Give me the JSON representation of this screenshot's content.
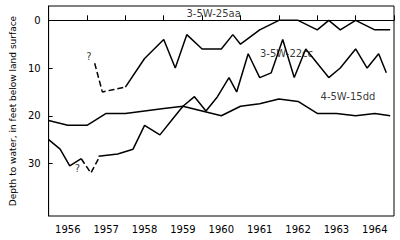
{
  "chart_data": {
    "type": "line",
    "y_label": "Depth to water, in feet below land surface",
    "xlim": [
      1956,
      1965
    ],
    "xticks": [
      {
        "value": 1956.5,
        "label": "1956"
      },
      {
        "value": 1957.5,
        "label": "1957"
      },
      {
        "value": 1958.5,
        "label": "1958"
      },
      {
        "value": 1959.5,
        "label": "1959"
      },
      {
        "value": 1960.5,
        "label": "1960"
      },
      {
        "value": 1961.5,
        "label": "1961"
      },
      {
        "value": 1962.5,
        "label": "1962"
      },
      {
        "value": 1963.5,
        "label": "1963"
      },
      {
        "value": 1964.5,
        "label": "1964"
      }
    ],
    "ylim": [
      -3,
      41
    ],
    "yticks": [
      0,
      10,
      20,
      30
    ],
    "inverted_y": true,
    "grid": false,
    "color": "#000000",
    "series": [
      {
        "name": "3-5W-25aa",
        "line_style": "dashed",
        "x": [
          1957.2,
          1957.4,
          1957.7,
          1958.0
        ],
        "values": [
          9,
          15,
          14.5,
          14
        ]
      },
      {
        "name": "3-5W-25aa",
        "line_style": "solid",
        "x": [
          1958.0,
          1958.5,
          1959.0,
          1959.3,
          1959.6,
          1960.0,
          1960.5,
          1960.8,
          1961.0,
          1961.5,
          1962.0,
          1962.5,
          1963.0,
          1963.3,
          1963.6,
          1964.0,
          1964.5,
          1964.9
        ],
        "values": [
          14,
          8,
          4,
          10,
          3,
          6,
          6,
          3,
          5,
          2,
          0,
          0,
          2,
          0,
          2,
          0,
          2,
          2
        ]
      },
      {
        "name": "3-5W-22cc",
        "line_style": "solid",
        "x": [
          1956.0,
          1956.3,
          1956.55,
          1956.85
        ],
        "values": [
          25,
          27,
          30.5,
          29
        ]
      },
      {
        "name": "3-5W-22cc",
        "line_style": "dashed",
        "x": [
          1956.85,
          1957.1,
          1957.3
        ],
        "values": [
          29,
          32,
          29
        ]
      },
      {
        "name": "3-5W-22cc",
        "line_style": "solid",
        "x": [
          1957.3,
          1957.8,
          1958.2,
          1958.5,
          1958.9,
          1959.2,
          1959.5,
          1959.8,
          1960.1,
          1960.4,
          1960.7,
          1960.9,
          1961.2,
          1961.5,
          1961.8,
          1962.1,
          1962.4,
          1962.7,
          1963.0,
          1963.3,
          1963.6,
          1964.0,
          1964.3,
          1964.6,
          1964.8
        ],
        "values": [
          28.5,
          28,
          27,
          22,
          24,
          21,
          18,
          16,
          19,
          16,
          12,
          15,
          7,
          12,
          11,
          4,
          12,
          6,
          9,
          12,
          10,
          6,
          10,
          7,
          11
        ]
      },
      {
        "name": "4-5W-15dd",
        "line_style": "solid",
        "x": [
          1956.0,
          1956.5,
          1957.0,
          1957.5,
          1958.0,
          1958.5,
          1959.0,
          1959.5,
          1960.0,
          1960.5,
          1961.0,
          1961.5,
          1962.0,
          1962.5,
          1963.0,
          1963.5,
          1964.0,
          1964.5,
          1964.9
        ],
        "values": [
          21,
          22,
          22,
          19.5,
          19.5,
          19,
          18.5,
          18,
          19,
          20,
          18,
          17.5,
          16.5,
          17,
          19.5,
          19.5,
          20,
          19.5,
          20
        ]
      }
    ],
    "annotations": [
      {
        "text": "3-5W-25aa",
        "x": 1960.3,
        "y": -1.5
      },
      {
        "text": "3-5W-22cc",
        "x": 1962.2,
        "y": 7
      },
      {
        "text": "4-5W-15dd",
        "x": 1963.8,
        "y": 16
      },
      {
        "text": "?",
        "x": 1957.05,
        "y": 7.5
      },
      {
        "text": "?",
        "x": 1956.75,
        "y": 31
      }
    ]
  }
}
